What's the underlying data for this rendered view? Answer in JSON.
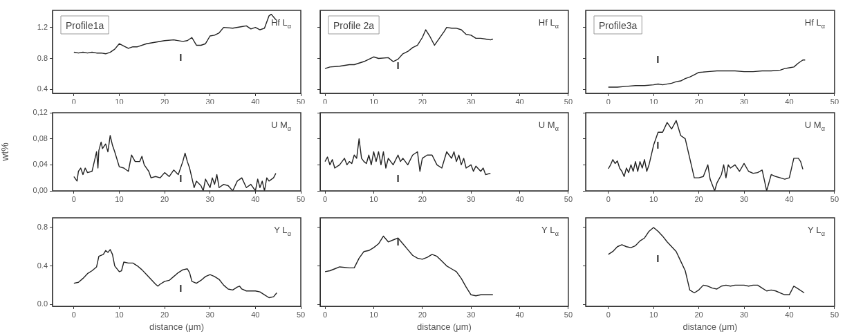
{
  "chart_data": [
    {
      "type": "line",
      "xlim": [
        -4.7,
        50
      ],
      "xticks": [
        0,
        10,
        20,
        30,
        40,
        50
      ],
      "ylim": [
        0.35,
        1.42
      ],
      "yticks": [
        0.4,
        0.8,
        1.2
      ],
      "annotations": [
        "Profile1a",
        "Hf L$_{α}$",
        "I"
      ],
      "x": [
        0,
        1,
        2,
        3,
        4,
        5,
        6,
        7,
        8,
        9,
        10,
        11,
        12,
        13,
        14,
        16,
        18,
        20,
        22,
        24,
        25,
        26,
        27,
        28,
        29,
        30,
        31,
        32,
        33,
        35,
        37,
        38,
        39,
        40,
        41,
        42,
        43,
        43.5,
        44.5
      ],
      "series": [
        {
          "color": "#222222",
          "values": [
            0.88,
            0.87,
            0.88,
            0.87,
            0.88,
            0.87,
            0.87,
            0.86,
            0.88,
            0.92,
            0.99,
            0.96,
            0.93,
            0.95,
            0.95,
            0.99,
            1.01,
            1.03,
            1.04,
            1.02,
            1.03,
            1.07,
            0.97,
            0.97,
            0.99,
            1.09,
            1.1,
            1.13,
            1.2,
            1.19,
            1.21,
            1.22,
            1.18,
            1.2,
            1.17,
            1.19,
            1.35,
            1.37,
            1.3
          ]
        }
      ]
    },
    {
      "type": "line",
      "xlim": [
        -1,
        50
      ],
      "xticks": [
        0,
        10,
        20,
        30,
        40,
        50
      ],
      "ylim": [
        0.35,
        1.42
      ],
      "yticks": [
        0.4,
        0.8,
        1.2
      ],
      "tick_labels": "x",
      "annotations": [
        "Profile 2a",
        "Hf L$_{α}$",
        "I"
      ],
      "x": [
        0,
        1,
        3,
        5,
        6,
        7,
        8,
        10,
        11,
        13,
        14,
        15,
        16,
        17,
        18,
        19,
        20,
        20.7,
        21.5,
        22.5,
        23.5,
        24.5,
        25,
        26,
        27,
        28,
        29,
        30,
        31,
        32,
        33,
        34,
        34.5
      ],
      "series": [
        {
          "color": "#222222",
          "values": [
            0.67,
            0.69,
            0.7,
            0.72,
            0.72,
            0.74,
            0.76,
            0.82,
            0.8,
            0.81,
            0.76,
            0.79,
            0.86,
            0.89,
            0.94,
            0.97,
            1.07,
            1.17,
            1.09,
            0.97,
            1.06,
            1.15,
            1.2,
            1.19,
            1.19,
            1.17,
            1.11,
            1.1,
            1.06,
            1.06,
            1.05,
            1.04,
            1.05
          ]
        }
      ]
    },
    {
      "type": "line",
      "xlim": [
        -5,
        50
      ],
      "xticks": [
        0,
        10,
        20,
        30,
        40,
        50
      ],
      "ylim": [
        0.35,
        1.42
      ],
      "yticks": [
        0.4,
        0.8,
        1.2
      ],
      "tick_labels": "x",
      "annotations": [
        "Profile3a",
        "Hf L$_{α}$",
        "I"
      ],
      "x": [
        0,
        2,
        4,
        6,
        8,
        10,
        11,
        12,
        14,
        15,
        16,
        17,
        18,
        19,
        20,
        22,
        24,
        26,
        28,
        30,
        32,
        34,
        36,
        38,
        39,
        40,
        41,
        42,
        43,
        43.5
      ],
      "series": [
        {
          "color": "#222222",
          "values": [
            0.43,
            0.43,
            0.44,
            0.45,
            0.45,
            0.46,
            0.47,
            0.46,
            0.48,
            0.5,
            0.51,
            0.54,
            0.56,
            0.59,
            0.62,
            0.63,
            0.64,
            0.64,
            0.64,
            0.63,
            0.63,
            0.64,
            0.64,
            0.65,
            0.67,
            0.68,
            0.69,
            0.74,
            0.78,
            0.78
          ]
        }
      ]
    },
    {
      "type": "line",
      "xlim": [
        -4.7,
        50
      ],
      "xticks": [
        0,
        10,
        20,
        30,
        40,
        50
      ],
      "ylim": [
        0,
        0.12
      ],
      "yticks": [
        {
          "value": 0,
          "label": "0,00"
        },
        {
          "value": 0.04,
          "label": "0,04"
        },
        {
          "value": 0.08,
          "label": "0,08"
        },
        {
          "value": 0.12,
          "label": "0,12"
        }
      ],
      "ylabel": "wt%",
      "annotations": [
        "U M$_{α}$",
        "I"
      ],
      "x": [
        0,
        0.7,
        1,
        1.5,
        2,
        2.5,
        3,
        4,
        4.5,
        5,
        5.3,
        5.5,
        6,
        6.3,
        7,
        7.5,
        8,
        8.5,
        9,
        10,
        11,
        12,
        12.7,
        13.5,
        14.5,
        15,
        15.5,
        16,
        16.5,
        17,
        18,
        19,
        20,
        21,
        22,
        23,
        24,
        24.5,
        25,
        25.5,
        26,
        26.5,
        27,
        28,
        28.5,
        29,
        30,
        30.5,
        31,
        31.5,
        32,
        33,
        34,
        35,
        36,
        37,
        38,
        39,
        40,
        40.5,
        41,
        41.5,
        42,
        42.5,
        43,
        44,
        44.5
      ],
      "series": [
        {
          "color": "#222222",
          "values": [
            0.022,
            0.015,
            0.03,
            0.035,
            0.025,
            0.035,
            0.028,
            0.03,
            0.045,
            0.06,
            0.035,
            0.062,
            0.075,
            0.065,
            0.072,
            0.06,
            0.085,
            0.07,
            0.06,
            0.037,
            0.035,
            0.03,
            0.055,
            0.045,
            0.045,
            0.053,
            0.04,
            0.035,
            0.03,
            0.02,
            0.022,
            0.02,
            0.028,
            0.022,
            0.032,
            0.025,
            0.045,
            0.058,
            0.045,
            0.035,
            0.02,
            0.005,
            0.015,
            0.008,
            0,
            0.018,
            0.005,
            0.02,
            0.01,
            0.025,
            0.005,
            0.01,
            0.008,
            0,
            0.015,
            0.02,
            0.005,
            0.01,
            0,
            0.018,
            0.005,
            0.015,
            0,
            0.02,
            0.015,
            0.02,
            0.027
          ]
        }
      ]
    },
    {
      "type": "line",
      "xlim": [
        -1,
        50
      ],
      "xticks": [
        0,
        10,
        20,
        30,
        40,
        50
      ],
      "ylim": [
        0,
        0.12
      ],
      "yticks": [
        0,
        0.04,
        0.08,
        0.12
      ],
      "tick_labels": "x",
      "annotations": [
        "U M$_{α}$",
        "I"
      ],
      "x": [
        0,
        0.5,
        1,
        1.5,
        2,
        3,
        4,
        4.5,
        5,
        5.5,
        6,
        6.5,
        7,
        7.5,
        8,
        8.5,
        9,
        9.5,
        10,
        10.5,
        11,
        11.5,
        12,
        12.5,
        13,
        14,
        15,
        15.5,
        16,
        17,
        18,
        19,
        19.5,
        20,
        21,
        22,
        23,
        24,
        25,
        25.5,
        26,
        26.5,
        27,
        27.5,
        28,
        28.5,
        29,
        30,
        30.5,
        31,
        32,
        32.5,
        33,
        34
      ],
      "series": [
        {
          "color": "#222222",
          "values": [
            0.045,
            0.052,
            0.04,
            0.048,
            0.035,
            0.04,
            0.05,
            0.04,
            0.045,
            0.042,
            0.055,
            0.05,
            0.08,
            0.05,
            0.045,
            0.042,
            0.055,
            0.04,
            0.06,
            0.045,
            0.06,
            0.04,
            0.06,
            0.035,
            0.05,
            0.04,
            0.055,
            0.045,
            0.05,
            0.04,
            0.055,
            0.06,
            0.03,
            0.05,
            0.055,
            0.055,
            0.04,
            0.035,
            0.06,
            0.055,
            0.05,
            0.06,
            0.045,
            0.055,
            0.04,
            0.05,
            0.035,
            0.04,
            0.03,
            0.038,
            0.03,
            0.035,
            0.025,
            0.027
          ]
        }
      ]
    },
    {
      "type": "line",
      "xlim": [
        -5,
        50
      ],
      "xticks": [
        0,
        10,
        20,
        30,
        40,
        50
      ],
      "ylim": [
        0,
        0.12
      ],
      "yticks": [
        0,
        0.04,
        0.08,
        0.12
      ],
      "tick_labels": "x",
      "annotations": [
        "U M$_{α}$",
        "I"
      ],
      "x": [
        0,
        0.5,
        1,
        1.5,
        2,
        2.5,
        3,
        3.5,
        4,
        4.5,
        5,
        5.5,
        6,
        6.5,
        7,
        7.5,
        8,
        8.5,
        9,
        10,
        11,
        12,
        13,
        14,
        15,
        16,
        17,
        18,
        19,
        20,
        21,
        22,
        22.5,
        23.5,
        24,
        25,
        25.5,
        26,
        26.5,
        27,
        28,
        29,
        30,
        31,
        32,
        33,
        34,
        35,
        36,
        37,
        38,
        39,
        40,
        41,
        42,
        42.5,
        43
      ],
      "series": [
        {
          "color": "#222222",
          "values": [
            0.034,
            0.04,
            0.048,
            0.042,
            0.046,
            0.035,
            0.03,
            0.022,
            0.035,
            0.028,
            0.04,
            0.03,
            0.045,
            0.03,
            0.045,
            0.035,
            0.048,
            0.03,
            0.04,
            0.07,
            0.09,
            0.09,
            0.105,
            0.095,
            0.108,
            0.085,
            0.08,
            0.05,
            0.02,
            0.02,
            0.022,
            0.04,
            0.018,
            0,
            0.012,
            0.025,
            0.04,
            0.02,
            0.04,
            0.035,
            0.04,
            0.03,
            0.042,
            0.03,
            0.027,
            0.028,
            0.032,
            0,
            0.025,
            0.022,
            0.02,
            0.018,
            0.02,
            0.05,
            0.05,
            0.045,
            0.033
          ]
        }
      ]
    },
    {
      "type": "line",
      "xlim": [
        -4.7,
        50
      ],
      "xticks": [
        0,
        10,
        20,
        30,
        40,
        50
      ],
      "ylim": [
        -0.02,
        0.9
      ],
      "yticks": [
        {
          "value": 0,
          "label": "0.0"
        },
        0.4,
        0.8
      ],
      "xlabel": "distance (μm)",
      "annotations": [
        "Y L$_{α}$",
        "I"
      ],
      "x": [
        0,
        1,
        2,
        3,
        4,
        5,
        5.5,
        6.5,
        7,
        7.5,
        8,
        8.5,
        9,
        10,
        10.5,
        11,
        12,
        13,
        14,
        15,
        16,
        17,
        18,
        18.5,
        19,
        20,
        21,
        22,
        23,
        24,
        25,
        25.5,
        26,
        27,
        28,
        29,
        30,
        31,
        32,
        33,
        34,
        35,
        36,
        36.5,
        37,
        38,
        40,
        41,
        42,
        43,
        44,
        44.7
      ],
      "series": [
        {
          "color": "#222222",
          "values": [
            0.22,
            0.23,
            0.27,
            0.32,
            0.35,
            0.39,
            0.5,
            0.52,
            0.56,
            0.54,
            0.57,
            0.52,
            0.4,
            0.34,
            0.35,
            0.44,
            0.43,
            0.43,
            0.4,
            0.36,
            0.31,
            0.26,
            0.21,
            0.19,
            0.21,
            0.24,
            0.25,
            0.29,
            0.33,
            0.36,
            0.37,
            0.33,
            0.24,
            0.22,
            0.25,
            0.29,
            0.31,
            0.29,
            0.26,
            0.2,
            0.16,
            0.15,
            0.18,
            0.19,
            0.16,
            0.14,
            0.14,
            0.13,
            0.1,
            0.07,
            0.08,
            0.12
          ]
        }
      ]
    },
    {
      "type": "line",
      "xlim": [
        -1,
        50
      ],
      "xticks": [
        0,
        10,
        20,
        30,
        40,
        50
      ],
      "ylim": [
        -0.02,
        0.9
      ],
      "yticks": [
        0,
        0.4,
        0.8
      ],
      "tick_labels": "x",
      "xlabel": "distance (μm)",
      "annotations": [
        "Y L$_{α}$",
        "I"
      ],
      "x": [
        0,
        1,
        2,
        3,
        5,
        6,
        7,
        8,
        9,
        10,
        11,
        12,
        13,
        14,
        15,
        16,
        17,
        18,
        19,
        20,
        21,
        22,
        23,
        24,
        25,
        26,
        27,
        28,
        29,
        30,
        31,
        32,
        33,
        34,
        34.5
      ],
      "series": [
        {
          "color": "#222222",
          "values": [
            0.34,
            0.35,
            0.37,
            0.39,
            0.38,
            0.38,
            0.48,
            0.55,
            0.56,
            0.59,
            0.63,
            0.71,
            0.65,
            0.67,
            0.69,
            0.63,
            0.57,
            0.51,
            0.48,
            0.47,
            0.49,
            0.52,
            0.5,
            0.45,
            0.4,
            0.37,
            0.34,
            0.27,
            0.18,
            0.1,
            0.09,
            0.1,
            0.1,
            0.1,
            0.1
          ]
        }
      ]
    },
    {
      "type": "line",
      "xlim": [
        -5,
        50
      ],
      "xticks": [
        0,
        10,
        20,
        30,
        40,
        50
      ],
      "ylim": [
        -0.02,
        0.9
      ],
      "yticks": [
        0,
        0.4,
        0.8
      ],
      "tick_labels": "x",
      "xlabel": "distance (μm)",
      "annotations": [
        "Y L$_{α}$",
        "I"
      ],
      "x": [
        0,
        1,
        2,
        3,
        4,
        5,
        6,
        7,
        8,
        9,
        10,
        11,
        12,
        13,
        14,
        15,
        16,
        17,
        17.5,
        18,
        19,
        20,
        21,
        22,
        23,
        24,
        25,
        26,
        27,
        28,
        29,
        30,
        31,
        32,
        33,
        34,
        35,
        36,
        37,
        38,
        39,
        40,
        41,
        42,
        43.3
      ],
      "series": [
        {
          "color": "#222222",
          "values": [
            0.52,
            0.55,
            0.6,
            0.62,
            0.6,
            0.59,
            0.61,
            0.66,
            0.69,
            0.76,
            0.8,
            0.76,
            0.71,
            0.65,
            0.6,
            0.55,
            0.45,
            0.35,
            0.25,
            0.15,
            0.12,
            0.15,
            0.2,
            0.19,
            0.17,
            0.16,
            0.19,
            0.2,
            0.19,
            0.2,
            0.2,
            0.2,
            0.19,
            0.2,
            0.2,
            0.17,
            0.14,
            0.15,
            0.14,
            0.12,
            0.1,
            0.1,
            0.19,
            0.16,
            0.12
          ]
        }
      ]
    }
  ]
}
